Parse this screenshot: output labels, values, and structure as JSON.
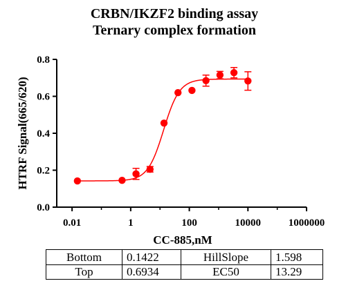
{
  "chart_data": {
    "type": "scatter",
    "title": [
      "CRBN/IKZF2 binding assay",
      "Ternary complex formation"
    ],
    "xlabel": "CC-885,nM",
    "ylabel": "HTRF Signal(665/620)",
    "xscale": "log10",
    "xlim": [
      0.003,
      1000000
    ],
    "ylim": [
      0.0,
      0.8
    ],
    "xticks": [
      0.01,
      1,
      100,
      10000,
      1000000
    ],
    "xtick_labels": [
      "0.01",
      "1",
      "100",
      "10000",
      "1000000"
    ],
    "yticks": [
      0.0,
      0.2,
      0.4,
      0.6,
      0.8
    ],
    "ytick_labels": [
      "0.0",
      "0.2",
      "0.4",
      "0.6",
      "0.8"
    ],
    "grid": false,
    "marker_color": "#ff0000",
    "points": [
      {
        "x": 0.0152,
        "y": 0.142,
        "err": 0
      },
      {
        "x": 0.508,
        "y": 0.145,
        "err": 0
      },
      {
        "x": 1.52,
        "y": 0.18,
        "err": 0.03
      },
      {
        "x": 4.57,
        "y": 0.205,
        "err": 0.015
      },
      {
        "x": 13.7,
        "y": 0.455,
        "err": 0
      },
      {
        "x": 41.1,
        "y": 0.62,
        "err": 0
      },
      {
        "x": 123,
        "y": 0.632,
        "err": 0
      },
      {
        "x": 370,
        "y": 0.685,
        "err": 0.03
      },
      {
        "x": 1111,
        "y": 0.715,
        "err": 0.02
      },
      {
        "x": 3333,
        "y": 0.728,
        "err": 0.028
      },
      {
        "x": 10000,
        "y": 0.683,
        "err": 0.05
      }
    ],
    "fit": {
      "model": "4PL",
      "bottom": 0.1422,
      "top": 0.6934,
      "hillslope": 1.598,
      "ec50": 13.29
    }
  },
  "params_table": [
    {
      "name": "Bottom",
      "value": "0.1422",
      "name2": "HillSlope",
      "value2": "1.598"
    },
    {
      "name": "Top",
      "value": "0.6934",
      "name2": "EC50",
      "value2": "13.29"
    }
  ]
}
